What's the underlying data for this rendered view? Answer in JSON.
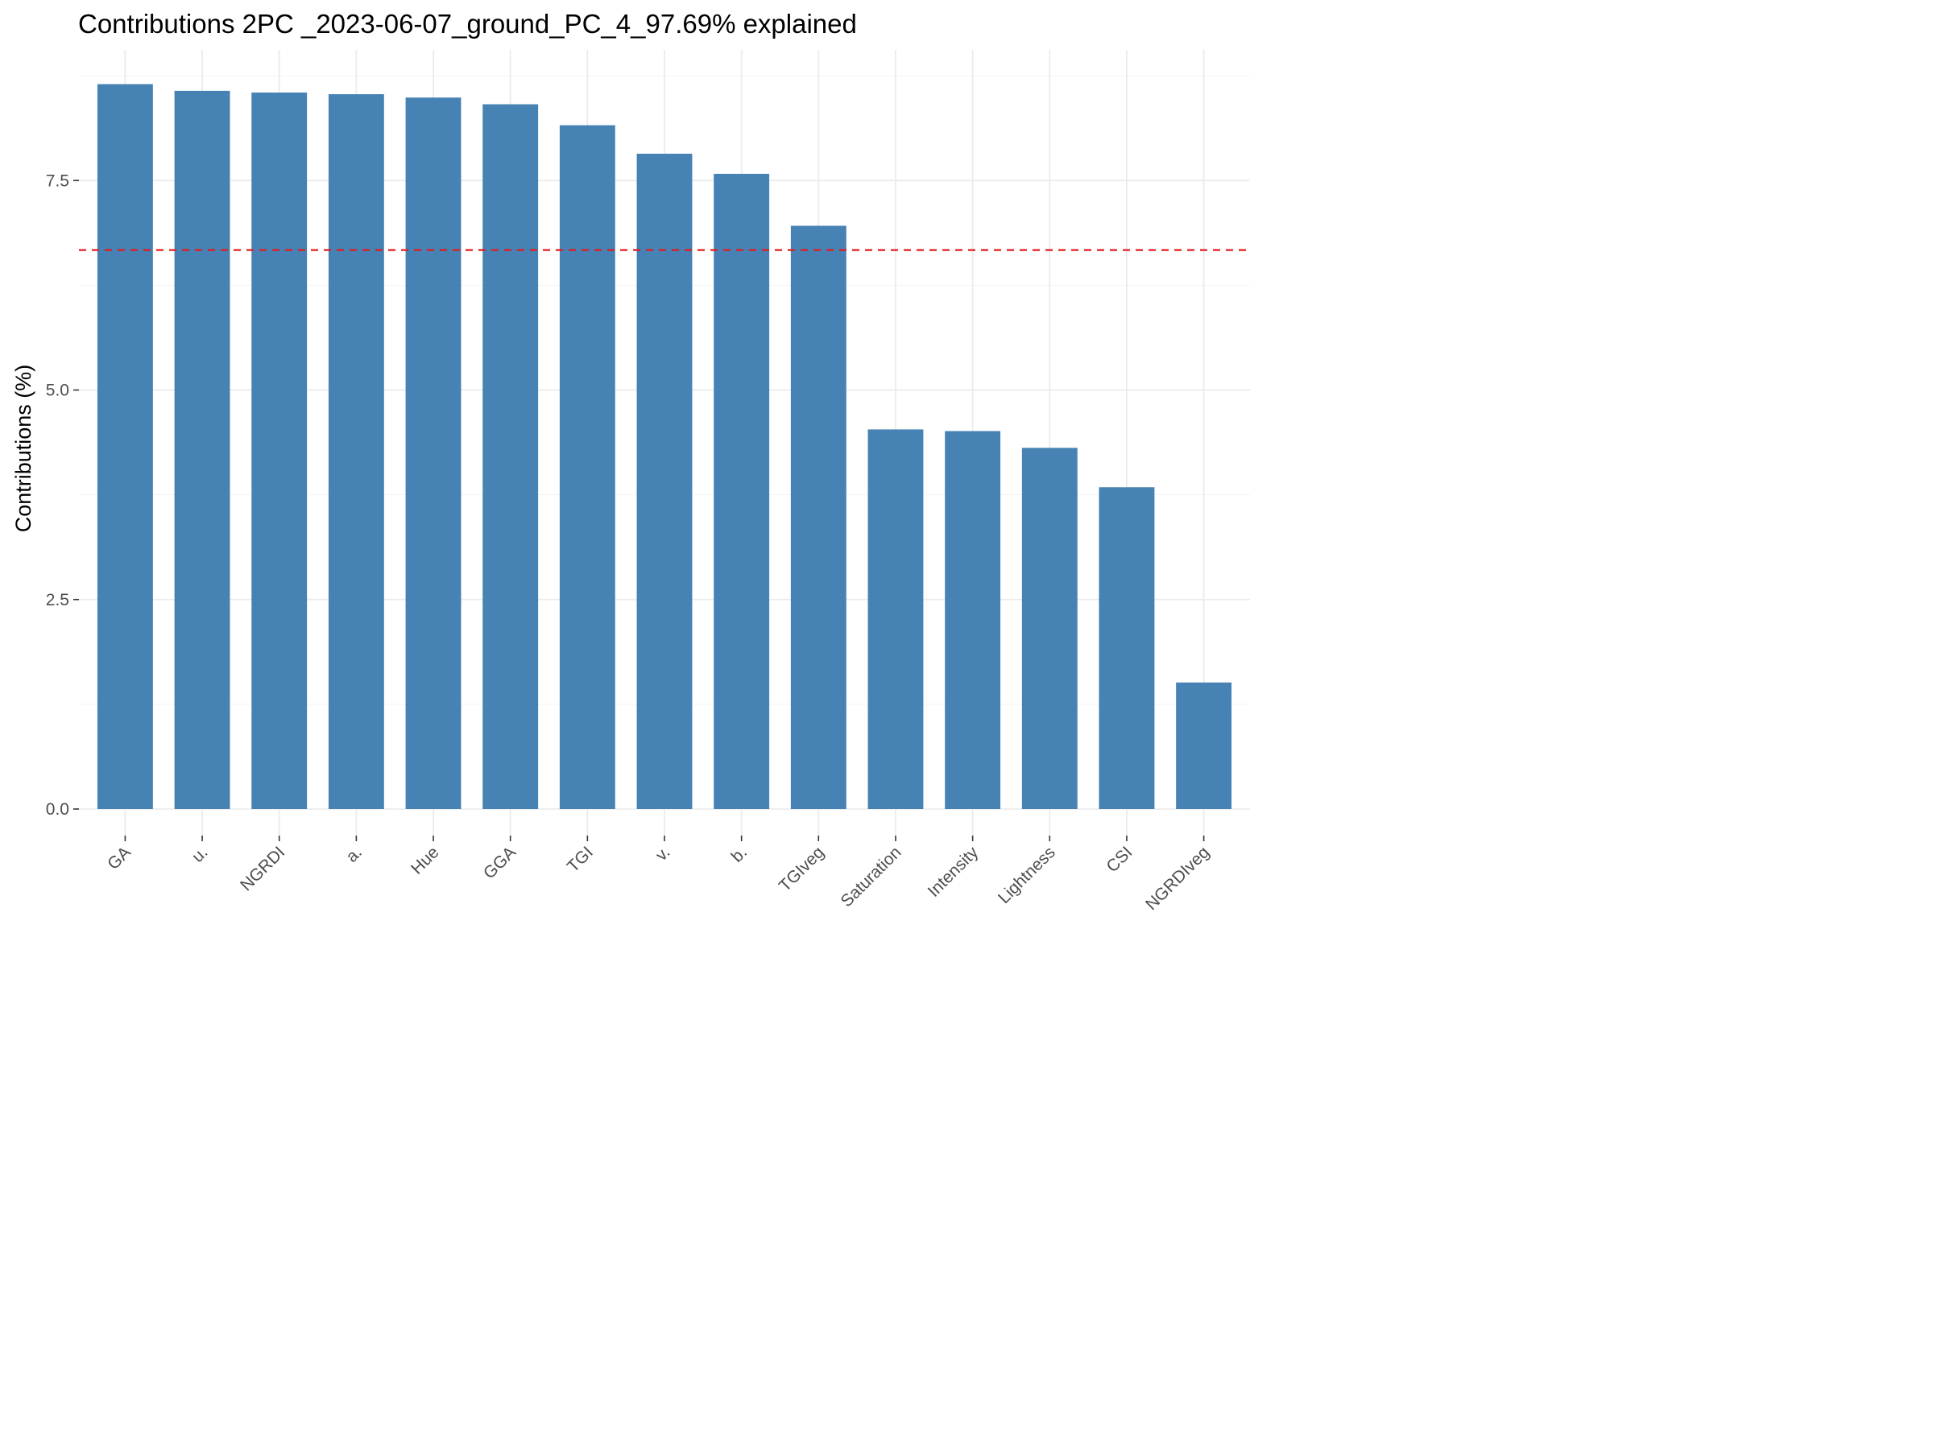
{
  "chart_data": {
    "type": "bar",
    "title": "Contributions 2PC _2023-06-07_ground_PC_4_97.69% explained",
    "xlabel": "",
    "ylabel": "Contributions (%)",
    "categories": [
      "GA",
      "u.",
      "NGRDI",
      "a.",
      "Hue",
      "GGA",
      "TGI",
      "v.",
      "b.",
      "TGIveg",
      "Saturation",
      "Intensity",
      "Lightness",
      "CSI",
      "NGRDIveg"
    ],
    "values": [
      8.65,
      8.57,
      8.55,
      8.53,
      8.49,
      8.41,
      8.16,
      7.82,
      7.58,
      6.96,
      4.53,
      4.51,
      4.31,
      3.84,
      1.51
    ],
    "ylim": [
      0,
      8.8
    ],
    "yticks": [
      0.0,
      2.5,
      5.0,
      7.5
    ],
    "ytick_labels": [
      "0.0",
      "2.5",
      "5.0",
      "7.5"
    ],
    "reference_line": {
      "value": 6.67,
      "style": "dashed",
      "color": "#e41a1c"
    },
    "bar_color": "#4682b4",
    "grid": true,
    "legend": "none"
  }
}
